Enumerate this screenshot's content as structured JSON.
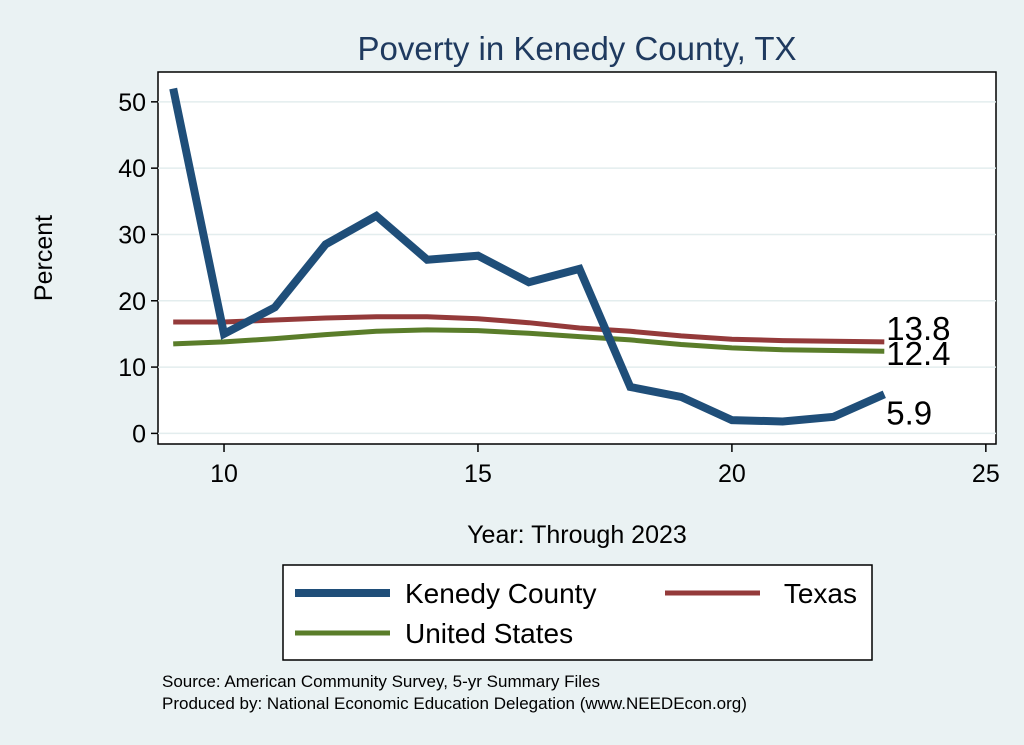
{
  "chart_data": {
    "type": "line",
    "title": "Poverty in Kenedy County, TX",
    "xlabel": "Year: Through 2023",
    "ylabel": "Percent",
    "xlim": [
      8.7,
      25.2
    ],
    "ylim": [
      -1.6,
      54.5
    ],
    "x_ticks": [
      10,
      15,
      20,
      25
    ],
    "y_ticks": [
      0,
      10,
      20,
      30,
      40,
      50
    ],
    "grid": true,
    "legend_position": "bottom",
    "series": [
      {
        "name": "Kenedy County",
        "color": "#1f4e79",
        "x": [
          9,
          10,
          11,
          12,
          13,
          14,
          15,
          16,
          17,
          18,
          19,
          20,
          21,
          22,
          23
        ],
        "values": [
          52,
          15,
          19,
          28.5,
          32.8,
          26.2,
          26.8,
          22.8,
          24.8,
          7,
          5.5,
          2,
          1.8,
          2.5,
          5.9
        ],
        "end_label": "5.9"
      },
      {
        "name": "Texas",
        "color": "#943a3a",
        "x": [
          9,
          10,
          11,
          12,
          13,
          14,
          15,
          16,
          17,
          18,
          19,
          20,
          21,
          22,
          23
        ],
        "values": [
          16.8,
          16.8,
          17.1,
          17.4,
          17.6,
          17.6,
          17.3,
          16.7,
          15.9,
          15.4,
          14.7,
          14.2,
          14.0,
          13.9,
          13.8
        ],
        "end_label": "13.8"
      },
      {
        "name": "United States",
        "color": "#5a7d2a",
        "x": [
          9,
          10,
          11,
          12,
          13,
          14,
          15,
          16,
          17,
          18,
          19,
          20,
          21,
          22,
          23
        ],
        "values": [
          13.5,
          13.8,
          14.3,
          14.9,
          15.4,
          15.6,
          15.5,
          15.1,
          14.6,
          14.1,
          13.4,
          12.9,
          12.6,
          12.5,
          12.4
        ],
        "end_label": "12.4"
      }
    ]
  },
  "footer": {
    "source": "Source: American Community Survey, 5-yr Summary Files",
    "produced": "Produced by: National Economic Education Delegation (www.NEEDEcon.org)"
  }
}
